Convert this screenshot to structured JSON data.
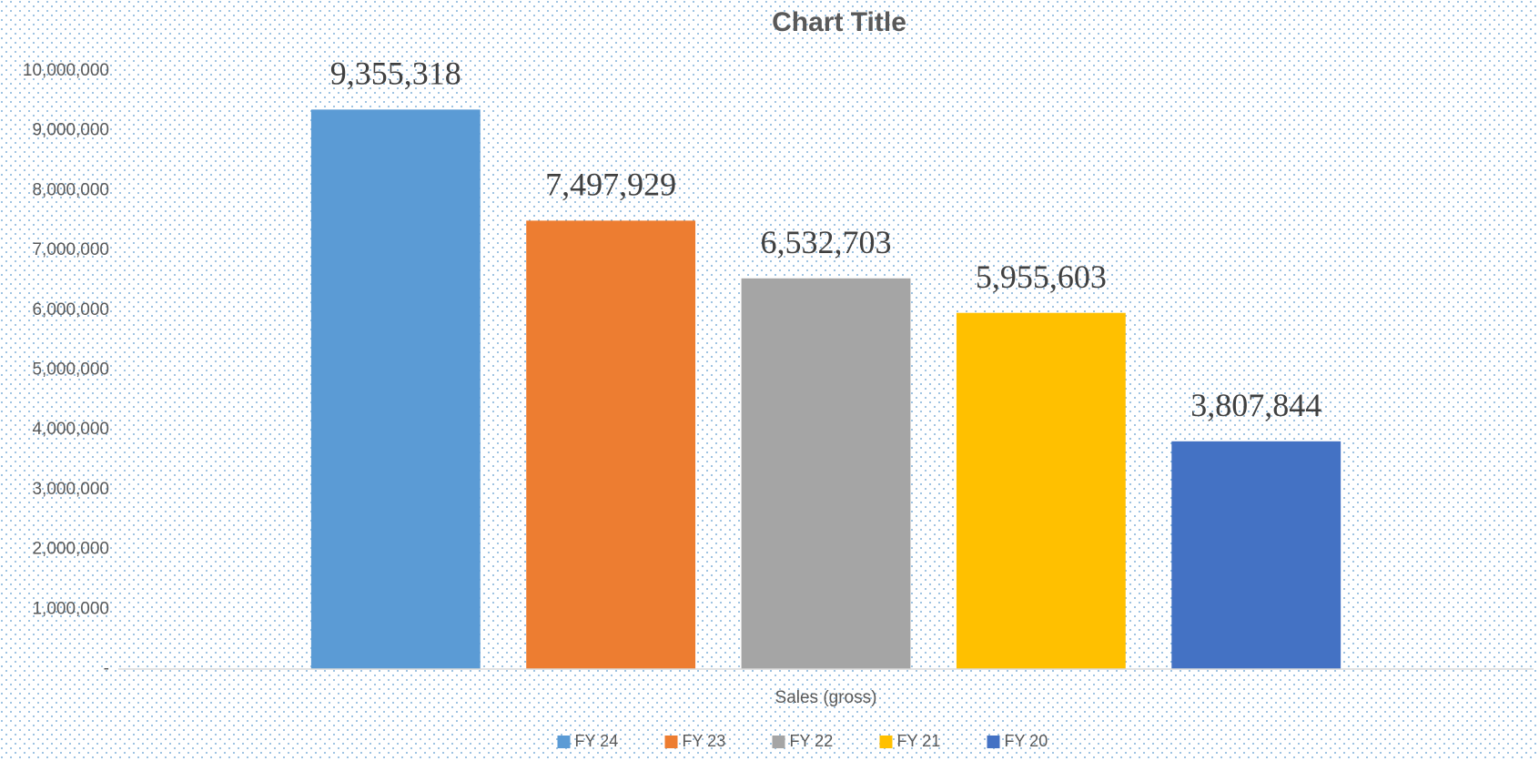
{
  "chart_data": {
    "type": "bar",
    "title": "Chart Title",
    "categories": [
      "Sales (gross)"
    ],
    "series": [
      {
        "name": "FY 24",
        "color": "#5b9bd5",
        "values": [
          9355318
        ],
        "value_labels": [
          "9,355,318"
        ]
      },
      {
        "name": "FY 23",
        "color": "#ed7d31",
        "values": [
          7497929
        ],
        "value_labels": [
          "7,497,929"
        ]
      },
      {
        "name": "FY 22",
        "color": "#a5a5a5",
        "values": [
          6532703
        ],
        "value_labels": [
          "6,532,703"
        ]
      },
      {
        "name": "FY 21",
        "color": "#ffc000",
        "values": [
          5955603
        ],
        "value_labels": [
          "5,955,603"
        ]
      },
      {
        "name": "FY 20",
        "color": "#4472c4",
        "values": [
          3807844
        ],
        "value_labels": [
          "3,807,844"
        ]
      }
    ],
    "ylim": [
      0,
      10000000
    ],
    "yticks": [
      {
        "value": 0,
        "label": "-"
      },
      {
        "value": 1000000,
        "label": "1,000,000"
      },
      {
        "value": 2000000,
        "label": "2,000,000"
      },
      {
        "value": 3000000,
        "label": "3,000,000"
      },
      {
        "value": 4000000,
        "label": "4,000,000"
      },
      {
        "value": 5000000,
        "label": "5,000,000"
      },
      {
        "value": 6000000,
        "label": "6,000,000"
      },
      {
        "value": 7000000,
        "label": "7,000,000"
      },
      {
        "value": 8000000,
        "label": "8,000,000"
      },
      {
        "value": 9000000,
        "label": "9,000,000"
      },
      {
        "value": 10000000,
        "label": "10,000,000"
      }
    ],
    "grid": false,
    "legend": "bottom"
  }
}
